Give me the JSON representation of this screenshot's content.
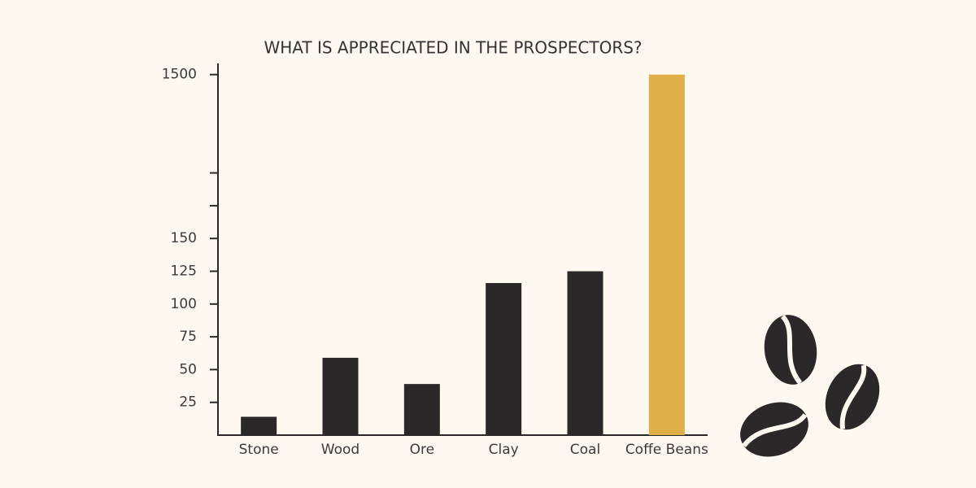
{
  "chart_data": {
    "type": "bar",
    "title": "WHAT IS APPRECIATED IN THE PROSPECTORS?",
    "categories": [
      "Stone",
      "Wood",
      "Ore",
      "Clay",
      "Coal",
      "Coffe Beans"
    ],
    "values": [
      14,
      59,
      39,
      116,
      125,
      1500
    ],
    "colors": [
      "#2b2829",
      "#2b2829",
      "#2b2829",
      "#2b2829",
      "#2b2829",
      "#e0b048"
    ],
    "ylim": [
      0,
      1500
    ],
    "yticks": [
      25,
      50,
      75,
      100,
      125,
      150,
      1500
    ],
    "axis_break": true
  }
}
